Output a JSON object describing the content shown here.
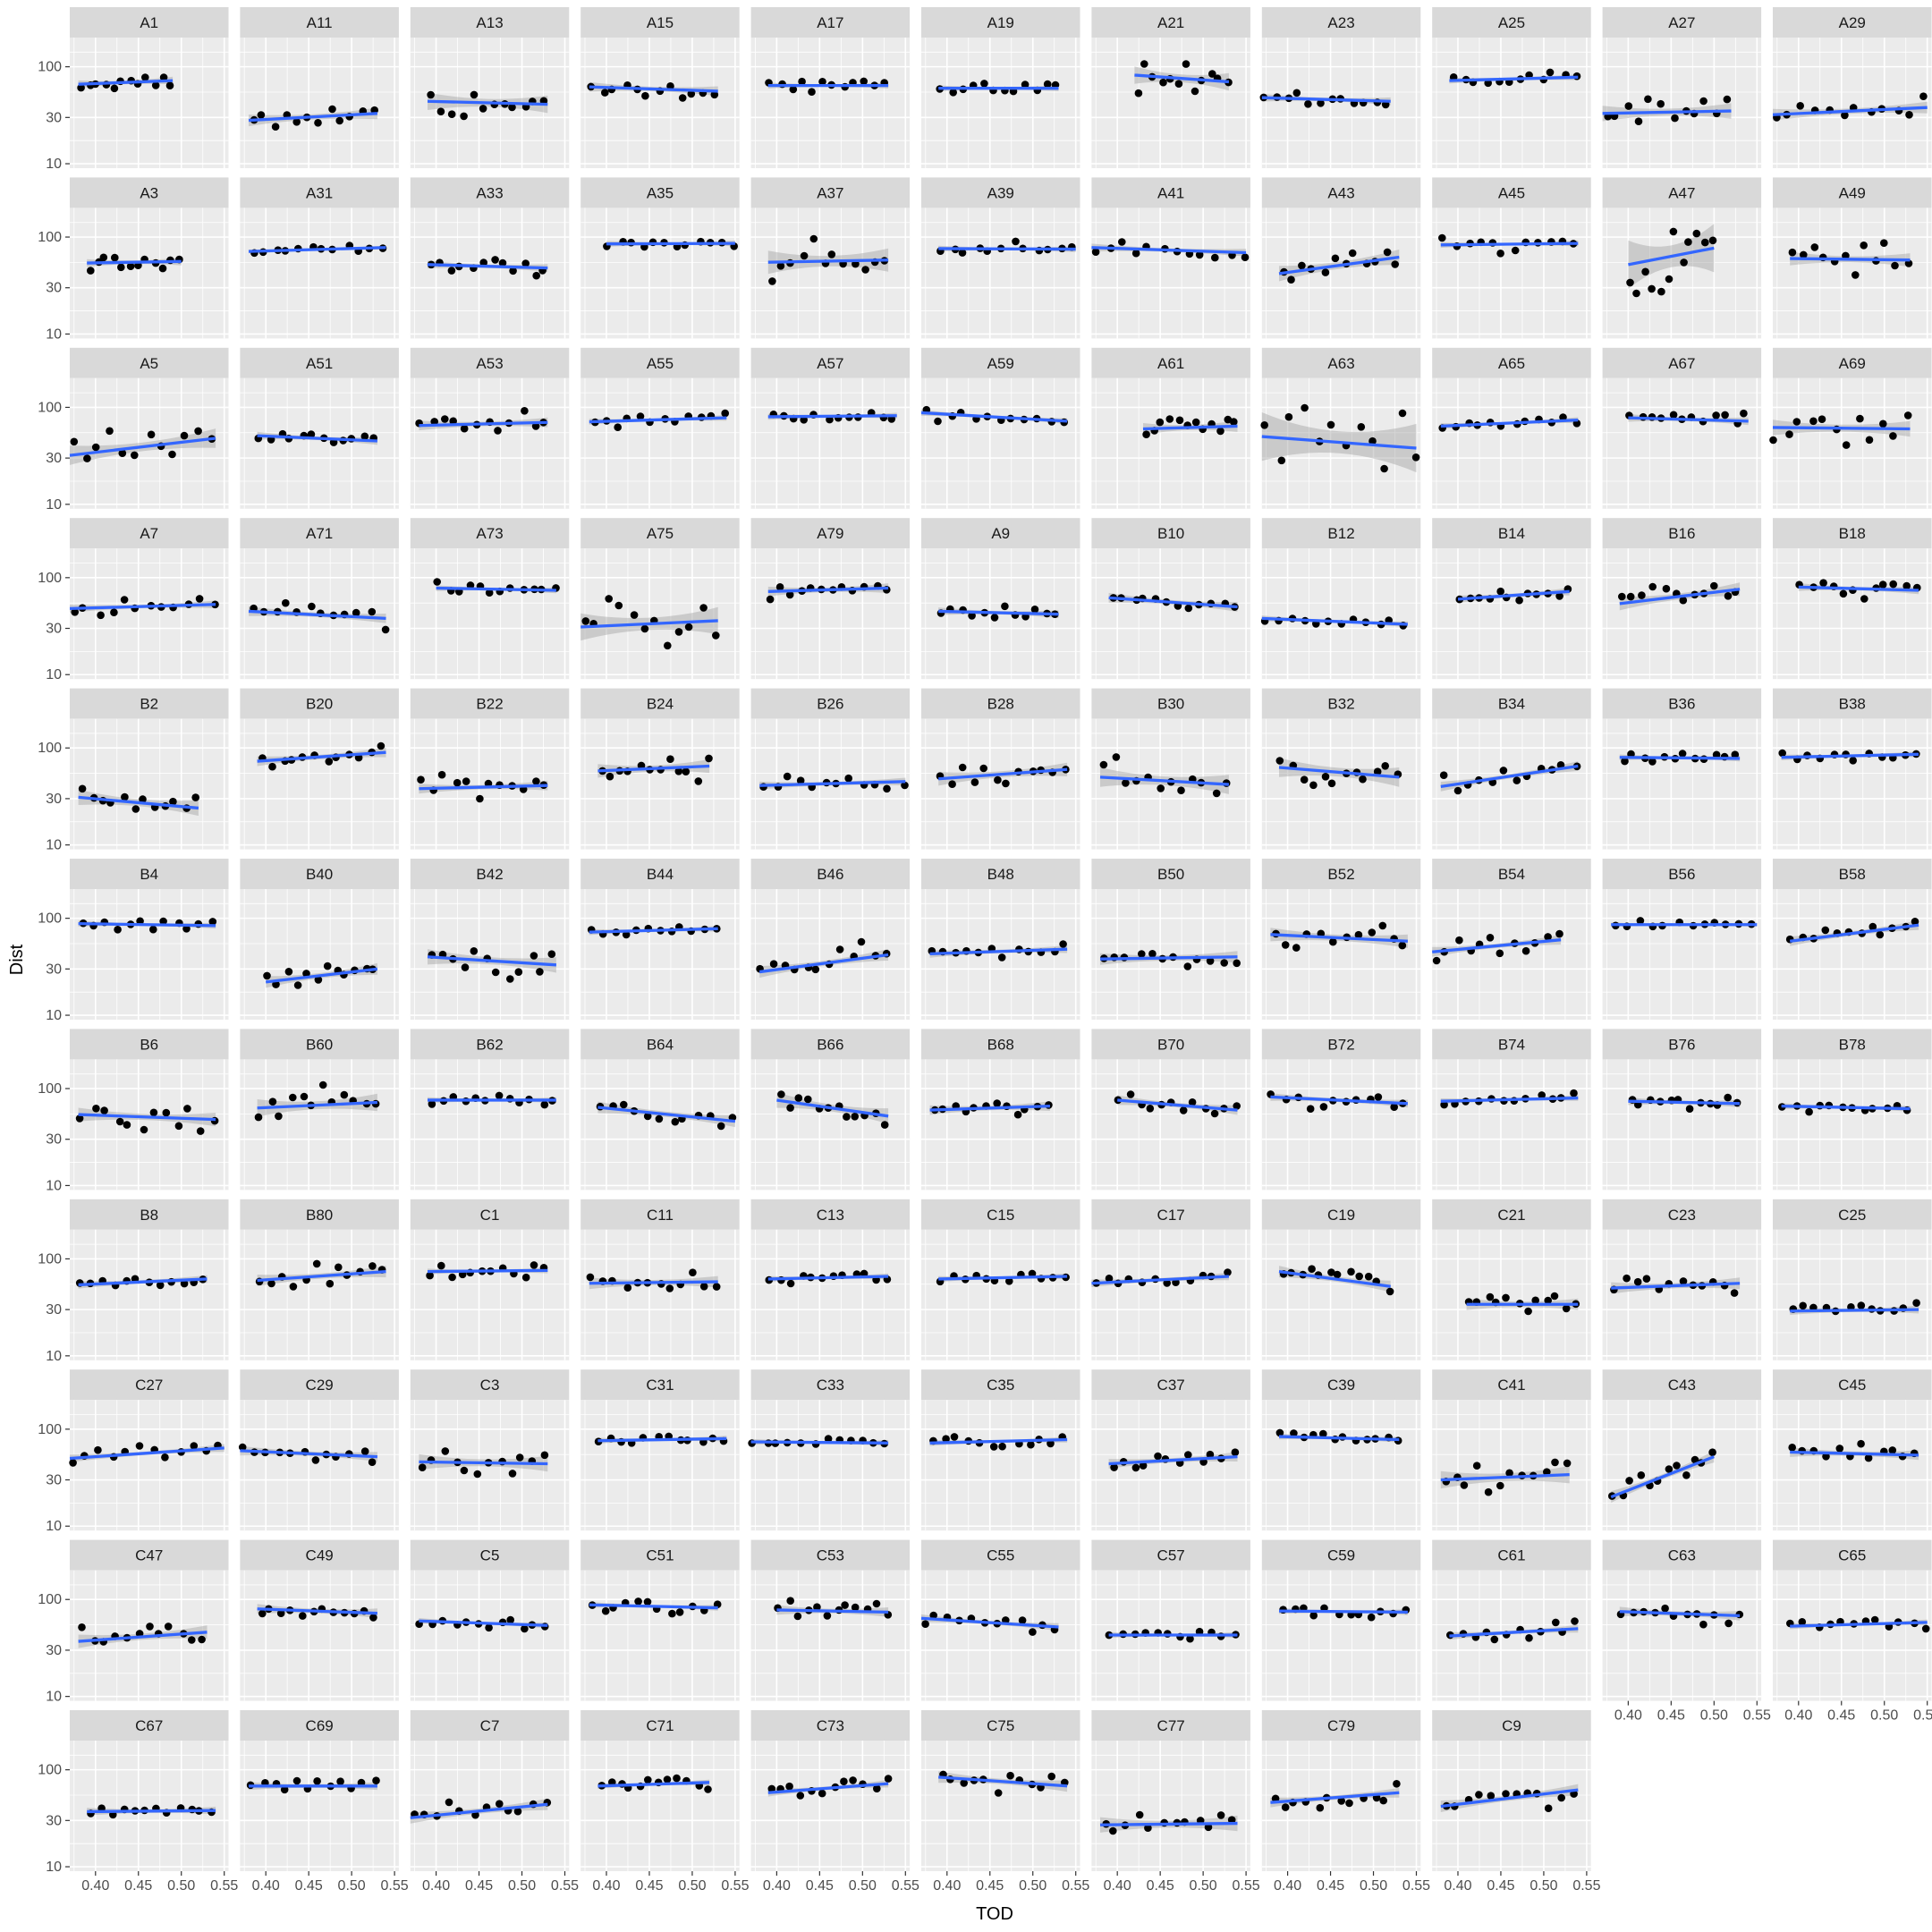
{
  "chart_data": {
    "type": "scatter",
    "facet_layout": {
      "ncol": 11,
      "nrow": 11
    },
    "xlabel": "TOD",
    "ylabel": "Dist",
    "x_scale": "linear",
    "y_scale": "log10",
    "xlim": [
      0.37,
      0.555
    ],
    "ylim": [
      9,
      200
    ],
    "x_ticks": [
      0.4,
      0.45,
      0.5,
      0.55
    ],
    "x_tick_labels": [
      "0.40",
      "0.45",
      "0.50",
      "0.55"
    ],
    "y_ticks": [
      10,
      30,
      100
    ],
    "y_tick_labels": [
      "10",
      "30",
      "100"
    ],
    "smoother": "lm with standard-error ribbon",
    "colors": {
      "panel_bg": "#ebebeb",
      "grid": "#ffffff",
      "strip_bg": "#d9d9d9",
      "points": "#000000",
      "fit_line": "#3366ff",
      "ribbon": "#999999"
    },
    "panels": [
      {
        "label": "A1",
        "x0": 0.38,
        "x1": 0.49,
        "y0": 66,
        "y1": 72,
        "se": 0.04
      },
      {
        "label": "A11",
        "x0": 0.38,
        "x1": 0.53,
        "y0": 28,
        "y1": 33,
        "se": 0.06
      },
      {
        "label": "A13",
        "x0": 0.39,
        "x1": 0.53,
        "y0": 44,
        "y1": 41,
        "se": 0.09
      },
      {
        "label": "A15",
        "x0": 0.38,
        "x1": 0.53,
        "y0": 62,
        "y1": 56,
        "se": 0.05
      },
      {
        "label": "A17",
        "x0": 0.39,
        "x1": 0.53,
        "y0": 64,
        "y1": 64,
        "se": 0.03
      },
      {
        "label": "A19",
        "x0": 0.39,
        "x1": 0.53,
        "y0": 60,
        "y1": 60,
        "se": 0.03
      },
      {
        "label": "A21",
        "x0": 0.42,
        "x1": 0.53,
        "y0": 82,
        "y1": 70,
        "se": 0.09
      },
      {
        "label": "A23",
        "x0": 0.37,
        "x1": 0.52,
        "y0": 48,
        "y1": 44,
        "se": 0.04
      },
      {
        "label": "A25",
        "x0": 0.39,
        "x1": 0.54,
        "y0": 72,
        "y1": 78,
        "se": 0.03
      },
      {
        "label": "A27",
        "x0": 0.37,
        "x1": 0.52,
        "y0": 33,
        "y1": 35,
        "se": 0.08
      },
      {
        "label": "A29",
        "x0": 0.37,
        "x1": 0.55,
        "y0": 32,
        "y1": 38,
        "se": 0.06
      },
      {
        "label": "A3",
        "x0": 0.39,
        "x1": 0.5,
        "y0": 54,
        "y1": 56,
        "se": 0.04
      },
      {
        "label": "A31",
        "x0": 0.38,
        "x1": 0.54,
        "y0": 71,
        "y1": 78,
        "se": 0.02
      },
      {
        "label": "A33",
        "x0": 0.39,
        "x1": 0.53,
        "y0": 52,
        "y1": 48,
        "se": 0.04
      },
      {
        "label": "A35",
        "x0": 0.4,
        "x1": 0.55,
        "y0": 85,
        "y1": 86,
        "se": 0.03
      },
      {
        "label": "A37",
        "x0": 0.39,
        "x1": 0.53,
        "y0": 55,
        "y1": 58,
        "se": 0.12
      },
      {
        "label": "A39",
        "x0": 0.39,
        "x1": 0.55,
        "y0": 76,
        "y1": 75,
        "se": 0.03
      },
      {
        "label": "A41",
        "x0": 0.37,
        "x1": 0.55,
        "y0": 78,
        "y1": 69,
        "se": 0.04
      },
      {
        "label": "A43",
        "x0": 0.39,
        "x1": 0.53,
        "y0": 42,
        "y1": 62,
        "se": 0.08
      },
      {
        "label": "A45",
        "x0": 0.38,
        "x1": 0.54,
        "y0": 83,
        "y1": 86,
        "se": 0.03
      },
      {
        "label": "A47",
        "x0": 0.4,
        "x1": 0.5,
        "y0": 52,
        "y1": 77,
        "se": 0.25
      },
      {
        "label": "A49",
        "x0": 0.39,
        "x1": 0.53,
        "y0": 60,
        "y1": 58,
        "se": 0.07
      },
      {
        "label": "A5",
        "x0": 0.37,
        "x1": 0.54,
        "y0": 32,
        "y1": 48,
        "se": 0.1
      },
      {
        "label": "A51",
        "x0": 0.39,
        "x1": 0.53,
        "y0": 51,
        "y1": 45,
        "se": 0.04
      },
      {
        "label": "A53",
        "x0": 0.38,
        "x1": 0.53,
        "y0": 65,
        "y1": 70,
        "se": 0.05
      },
      {
        "label": "A55",
        "x0": 0.38,
        "x1": 0.54,
        "y0": 71,
        "y1": 78,
        "se": 0.03
      },
      {
        "label": "A57",
        "x0": 0.39,
        "x1": 0.54,
        "y0": 80,
        "y1": 82,
        "se": 0.03
      },
      {
        "label": "A59",
        "x0": 0.37,
        "x1": 0.54,
        "y0": 88,
        "y1": 72,
        "se": 0.03
      },
      {
        "label": "A61",
        "x0": 0.43,
        "x1": 0.54,
        "y0": 60,
        "y1": 64,
        "se": 0.06
      },
      {
        "label": "A63",
        "x0": 0.37,
        "x1": 0.55,
        "y0": 50,
        "y1": 38,
        "se": 0.25
      },
      {
        "label": "A65",
        "x0": 0.38,
        "x1": 0.54,
        "y0": 64,
        "y1": 74,
        "se": 0.03
      },
      {
        "label": "A67",
        "x0": 0.4,
        "x1": 0.54,
        "y0": 78,
        "y1": 72,
        "se": 0.04
      },
      {
        "label": "A69",
        "x0": 0.37,
        "x1": 0.53,
        "y0": 62,
        "y1": 60,
        "se": 0.08
      },
      {
        "label": "A7",
        "x0": 0.37,
        "x1": 0.54,
        "y0": 48,
        "y1": 53,
        "se": 0.04
      },
      {
        "label": "A71",
        "x0": 0.38,
        "x1": 0.54,
        "y0": 45,
        "y1": 38,
        "se": 0.05
      },
      {
        "label": "A73",
        "x0": 0.4,
        "x1": 0.54,
        "y0": 78,
        "y1": 74,
        "se": 0.03
      },
      {
        "label": "A75",
        "x0": 0.37,
        "x1": 0.53,
        "y0": 31,
        "y1": 36,
        "se": 0.14
      },
      {
        "label": "A79",
        "x0": 0.39,
        "x1": 0.53,
        "y0": 72,
        "y1": 78,
        "se": 0.05
      },
      {
        "label": "A9",
        "x0": 0.39,
        "x1": 0.53,
        "y0": 45,
        "y1": 42,
        "se": 0.04
      },
      {
        "label": "B10",
        "x0": 0.39,
        "x1": 0.54,
        "y0": 62,
        "y1": 50,
        "se": 0.05
      },
      {
        "label": "B12",
        "x0": 0.37,
        "x1": 0.54,
        "y0": 38,
        "y1": 33,
        "se": 0.03
      },
      {
        "label": "B14",
        "x0": 0.4,
        "x1": 0.53,
        "y0": 60,
        "y1": 72,
        "se": 0.04
      },
      {
        "label": "B16",
        "x0": 0.39,
        "x1": 0.53,
        "y0": 54,
        "y1": 76,
        "se": 0.07
      },
      {
        "label": "B18",
        "x0": 0.4,
        "x1": 0.54,
        "y0": 80,
        "y1": 74,
        "se": 0.04
      },
      {
        "label": "B2",
        "x0": 0.38,
        "x1": 0.52,
        "y0": 31,
        "y1": 24,
        "se": 0.08
      },
      {
        "label": "B20",
        "x0": 0.39,
        "x1": 0.54,
        "y0": 73,
        "y1": 90,
        "se": 0.05
      },
      {
        "label": "B22",
        "x0": 0.38,
        "x1": 0.53,
        "y0": 38,
        "y1": 41,
        "se": 0.05
      },
      {
        "label": "B24",
        "x0": 0.39,
        "x1": 0.52,
        "y0": 58,
        "y1": 65,
        "se": 0.07
      },
      {
        "label": "B26",
        "x0": 0.38,
        "x1": 0.55,
        "y0": 41,
        "y1": 45,
        "se": 0.04
      },
      {
        "label": "B28",
        "x0": 0.39,
        "x1": 0.54,
        "y0": 48,
        "y1": 60,
        "se": 0.07
      },
      {
        "label": "B30",
        "x0": 0.38,
        "x1": 0.53,
        "y0": 50,
        "y1": 42,
        "se": 0.1
      },
      {
        "label": "B32",
        "x0": 0.39,
        "x1": 0.53,
        "y0": 63,
        "y1": 50,
        "se": 0.1
      },
      {
        "label": "B34",
        "x0": 0.38,
        "x1": 0.54,
        "y0": 40,
        "y1": 65,
        "se": 0.05
      },
      {
        "label": "B36",
        "x0": 0.39,
        "x1": 0.53,
        "y0": 80,
        "y1": 78,
        "se": 0.03
      },
      {
        "label": "B38",
        "x0": 0.38,
        "x1": 0.54,
        "y0": 80,
        "y1": 86,
        "se": 0.03
      },
      {
        "label": "B4",
        "x0": 0.38,
        "x1": 0.54,
        "y0": 88,
        "y1": 84,
        "se": 0.03
      },
      {
        "label": "B40",
        "x0": 0.4,
        "x1": 0.53,
        "y0": 22,
        "y1": 30,
        "se": 0.06
      },
      {
        "label": "B42",
        "x0": 0.39,
        "x1": 0.54,
        "y0": 40,
        "y1": 33,
        "se": 0.08
      },
      {
        "label": "B44",
        "x0": 0.38,
        "x1": 0.53,
        "y0": 72,
        "y1": 78,
        "se": 0.03
      },
      {
        "label": "B46",
        "x0": 0.38,
        "x1": 0.53,
        "y0": 28,
        "y1": 42,
        "se": 0.06
      },
      {
        "label": "B48",
        "x0": 0.38,
        "x1": 0.54,
        "y0": 43,
        "y1": 48,
        "se": 0.04
      },
      {
        "label": "B50",
        "x0": 0.38,
        "x1": 0.54,
        "y0": 38,
        "y1": 40,
        "se": 0.06
      },
      {
        "label": "B52",
        "x0": 0.38,
        "x1": 0.54,
        "y0": 68,
        "y1": 58,
        "se": 0.07
      },
      {
        "label": "B54",
        "x0": 0.37,
        "x1": 0.52,
        "y0": 45,
        "y1": 60,
        "se": 0.05
      },
      {
        "label": "B56",
        "x0": 0.38,
        "x1": 0.55,
        "y0": 86,
        "y1": 86,
        "se": 0.02
      },
      {
        "label": "B58",
        "x0": 0.39,
        "x1": 0.54,
        "y0": 58,
        "y1": 85,
        "se": 0.05
      },
      {
        "label": "B6",
        "x0": 0.38,
        "x1": 0.54,
        "y0": 54,
        "y1": 48,
        "se": 0.07
      },
      {
        "label": "B60",
        "x0": 0.39,
        "x1": 0.53,
        "y0": 63,
        "y1": 72,
        "se": 0.09
      },
      {
        "label": "B62",
        "x0": 0.39,
        "x1": 0.54,
        "y0": 76,
        "y1": 76,
        "se": 0.03
      },
      {
        "label": "B64",
        "x0": 0.39,
        "x1": 0.55,
        "y0": 64,
        "y1": 46,
        "se": 0.06
      },
      {
        "label": "B66",
        "x0": 0.4,
        "x1": 0.53,
        "y0": 76,
        "y1": 52,
        "se": 0.08
      },
      {
        "label": "B68",
        "x0": 0.38,
        "x1": 0.52,
        "y0": 60,
        "y1": 66,
        "se": 0.05
      },
      {
        "label": "B70",
        "x0": 0.4,
        "x1": 0.54,
        "y0": 76,
        "y1": 60,
        "se": 0.05
      },
      {
        "label": "B72",
        "x0": 0.38,
        "x1": 0.54,
        "y0": 82,
        "y1": 70,
        "se": 0.04
      },
      {
        "label": "B74",
        "x0": 0.38,
        "x1": 0.54,
        "y0": 74,
        "y1": 80,
        "se": 0.03
      },
      {
        "label": "B76",
        "x0": 0.4,
        "x1": 0.53,
        "y0": 74,
        "y1": 70,
        "se": 0.04
      },
      {
        "label": "B78",
        "x0": 0.38,
        "x1": 0.53,
        "y0": 66,
        "y1": 62,
        "se": 0.03
      },
      {
        "label": "B8",
        "x0": 0.38,
        "x1": 0.53,
        "y0": 54,
        "y1": 62,
        "se": 0.04
      },
      {
        "label": "B80",
        "x0": 0.39,
        "x1": 0.54,
        "y0": 60,
        "y1": 74,
        "se": 0.06
      },
      {
        "label": "C1",
        "x0": 0.39,
        "x1": 0.53,
        "y0": 74,
        "y1": 76,
        "se": 0.03
      },
      {
        "label": "C11",
        "x0": 0.38,
        "x1": 0.53,
        "y0": 56,
        "y1": 58,
        "se": 0.06
      },
      {
        "label": "C13",
        "x0": 0.39,
        "x1": 0.53,
        "y0": 62,
        "y1": 66,
        "se": 0.03
      },
      {
        "label": "C15",
        "x0": 0.39,
        "x1": 0.54,
        "y0": 62,
        "y1": 66,
        "se": 0.03
      },
      {
        "label": "C17",
        "x0": 0.37,
        "x1": 0.53,
        "y0": 56,
        "y1": 66,
        "se": 0.04
      },
      {
        "label": "C19",
        "x0": 0.39,
        "x1": 0.52,
        "y0": 74,
        "y1": 52,
        "se": 0.06
      },
      {
        "label": "C21",
        "x0": 0.41,
        "x1": 0.54,
        "y0": 34,
        "y1": 34,
        "se": 0.06
      },
      {
        "label": "C23",
        "x0": 0.38,
        "x1": 0.53,
        "y0": 50,
        "y1": 56,
        "se": 0.06
      },
      {
        "label": "C25",
        "x0": 0.39,
        "x1": 0.54,
        "y0": 29,
        "y1": 30,
        "se": 0.04
      },
      {
        "label": "C27",
        "x0": 0.37,
        "x1": 0.55,
        "y0": 50,
        "y1": 64,
        "se": 0.04
      },
      {
        "label": "C29",
        "x0": 0.37,
        "x1": 0.53,
        "y0": 60,
        "y1": 52,
        "se": 0.05
      },
      {
        "label": "C3",
        "x0": 0.38,
        "x1": 0.53,
        "y0": 46,
        "y1": 44,
        "se": 0.08
      },
      {
        "label": "C31",
        "x0": 0.39,
        "x1": 0.54,
        "y0": 76,
        "y1": 80,
        "se": 0.03
      },
      {
        "label": "C33",
        "x0": 0.37,
        "x1": 0.53,
        "y0": 74,
        "y1": 72,
        "se": 0.03
      },
      {
        "label": "C35",
        "x0": 0.38,
        "x1": 0.54,
        "y0": 72,
        "y1": 78,
        "se": 0.03
      },
      {
        "label": "C37",
        "x0": 0.39,
        "x1": 0.54,
        "y0": 44,
        "y1": 52,
        "se": 0.05
      },
      {
        "label": "C39",
        "x0": 0.39,
        "x1": 0.53,
        "y0": 84,
        "y1": 78,
        "se": 0.03
      },
      {
        "label": "C41",
        "x0": 0.38,
        "x1": 0.53,
        "y0": 30,
        "y1": 34,
        "se": 0.09
      },
      {
        "label": "C43",
        "x0": 0.38,
        "x1": 0.5,
        "y0": 20,
        "y1": 52,
        "se": 0.06
      },
      {
        "label": "C45",
        "x0": 0.39,
        "x1": 0.54,
        "y0": 58,
        "y1": 54,
        "se": 0.05
      },
      {
        "label": "C47",
        "x0": 0.38,
        "x1": 0.53,
        "y0": 37,
        "y1": 46,
        "se": 0.07
      },
      {
        "label": "C49",
        "x0": 0.39,
        "x1": 0.53,
        "y0": 80,
        "y1": 72,
        "se": 0.05
      },
      {
        "label": "C5",
        "x0": 0.38,
        "x1": 0.53,
        "y0": 60,
        "y1": 54,
        "se": 0.03
      },
      {
        "label": "C51",
        "x0": 0.38,
        "x1": 0.53,
        "y0": 88,
        "y1": 82,
        "se": 0.03
      },
      {
        "label": "C53",
        "x0": 0.4,
        "x1": 0.53,
        "y0": 78,
        "y1": 74,
        "se": 0.05
      },
      {
        "label": "C55",
        "x0": 0.37,
        "x1": 0.53,
        "y0": 64,
        "y1": 52,
        "se": 0.04
      },
      {
        "label": "C57",
        "x0": 0.39,
        "x1": 0.54,
        "y0": 43,
        "y1": 43,
        "se": 0.03
      },
      {
        "label": "C59",
        "x0": 0.39,
        "x1": 0.54,
        "y0": 76,
        "y1": 74,
        "se": 0.03
      },
      {
        "label": "C61",
        "x0": 0.39,
        "x1": 0.54,
        "y0": 42,
        "y1": 50,
        "se": 0.04
      },
      {
        "label": "C63",
        "x0": 0.39,
        "x1": 0.53,
        "y0": 75,
        "y1": 68,
        "se": 0.05
      },
      {
        "label": "C65",
        "x0": 0.39,
        "x1": 0.55,
        "y0": 53,
        "y1": 58,
        "se": 0.03
      },
      {
        "label": "C67",
        "x0": 0.39,
        "x1": 0.54,
        "y0": 37,
        "y1": 38,
        "se": 0.04
      },
      {
        "label": "C69",
        "x0": 0.38,
        "x1": 0.53,
        "y0": 68,
        "y1": 68,
        "se": 0.04
      },
      {
        "label": "C7",
        "x0": 0.37,
        "x1": 0.53,
        "y0": 32,
        "y1": 44,
        "se": 0.06
      },
      {
        "label": "C71",
        "x0": 0.39,
        "x1": 0.52,
        "y0": 68,
        "y1": 74,
        "se": 0.03
      },
      {
        "label": "C73",
        "x0": 0.39,
        "x1": 0.53,
        "y0": 58,
        "y1": 72,
        "se": 0.04
      },
      {
        "label": "C75",
        "x0": 0.39,
        "x1": 0.54,
        "y0": 84,
        "y1": 68,
        "se": 0.06
      },
      {
        "label": "C77",
        "x0": 0.38,
        "x1": 0.54,
        "y0": 27,
        "y1": 28,
        "se": 0.08
      },
      {
        "label": "C79",
        "x0": 0.38,
        "x1": 0.53,
        "y0": 46,
        "y1": 58,
        "se": 0.05
      },
      {
        "label": "C9",
        "x0": 0.38,
        "x1": 0.54,
        "y0": 42,
        "y1": 62,
        "se": 0.06
      }
    ]
  }
}
